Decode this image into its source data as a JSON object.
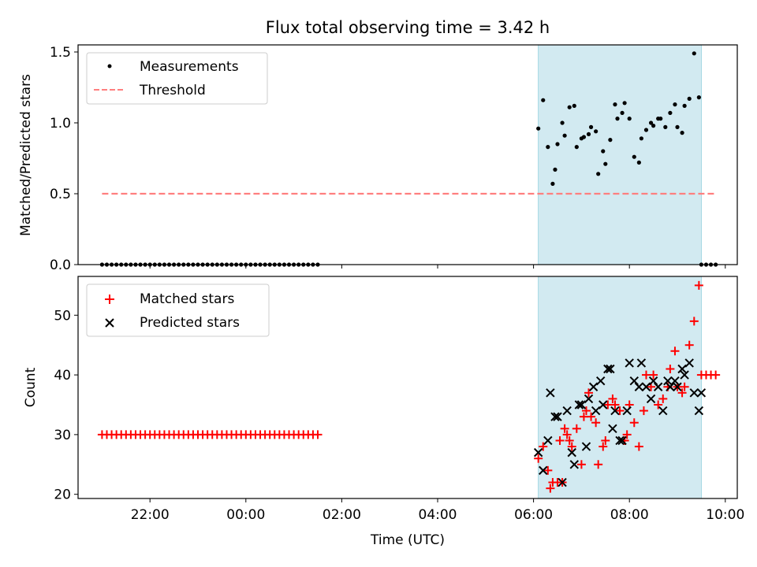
{
  "title": "Flux total observing time = 3.42 h",
  "colors": {
    "measurement": "#000000",
    "threshold": "#ff7f7f",
    "matched": "#ff0000",
    "predicted": "#000000",
    "span": "#add8e6"
  },
  "chart_data": [
    {
      "type": "scatter",
      "panel": "top",
      "xlabel": "",
      "ylabel": "Matched/Predicted stars",
      "ylim": [
        0,
        1.55
      ],
      "yticks": [
        "0.0",
        "0.5",
        "1.0",
        "1.5"
      ],
      "ytick_values": [
        0,
        0.5,
        1.0,
        1.5
      ],
      "xlim": [
        20.5,
        34.25
      ],
      "highlight_span": [
        30.1,
        33.5
      ],
      "legend_position": "upper-left",
      "legend": [
        "Measurements",
        "Threshold"
      ],
      "threshold": {
        "name": "Threshold",
        "value": 0.5,
        "x_range": [
          21.0,
          33.8
        ]
      },
      "series": [
        {
          "name": "Measurements",
          "x": [
            21.0,
            21.1,
            21.2,
            21.3,
            21.4,
            21.5,
            21.6,
            21.7,
            21.8,
            21.9,
            22.0,
            22.1,
            22.2,
            22.3,
            22.4,
            22.5,
            22.6,
            22.7,
            22.8,
            22.9,
            23.0,
            23.1,
            23.2,
            23.3,
            23.4,
            23.5,
            23.6,
            23.7,
            23.8,
            23.9,
            24.0,
            24.1,
            24.2,
            24.3,
            24.4,
            24.5,
            24.6,
            24.7,
            24.8,
            24.9,
            25.0,
            25.1,
            25.2,
            25.3,
            25.4,
            25.5,
            30.1,
            30.2,
            30.3,
            30.4,
            30.45,
            30.5,
            30.6,
            30.65,
            30.75,
            30.85,
            30.9,
            31.0,
            31.05,
            31.15,
            31.2,
            31.3,
            31.35,
            31.45,
            31.5,
            31.6,
            31.7,
            31.75,
            31.85,
            31.9,
            32.0,
            32.1,
            32.2,
            32.25,
            32.35,
            32.45,
            32.5,
            32.6,
            32.65,
            32.75,
            32.85,
            32.95,
            33.0,
            33.1,
            33.15,
            33.25,
            33.35,
            33.45,
            33.5,
            33.6,
            33.7,
            33.8
          ],
          "y": [
            0,
            0,
            0,
            0,
            0,
            0,
            0,
            0,
            0,
            0,
            0,
            0,
            0,
            0,
            0,
            0,
            0,
            0,
            0,
            0,
            0,
            0,
            0,
            0,
            0,
            0,
            0,
            0,
            0,
            0,
            0,
            0,
            0,
            0,
            0,
            0,
            0,
            0,
            0,
            0,
            0,
            0,
            0,
            0,
            0,
            0,
            0.96,
            1.16,
            0.83,
            0.57,
            0.67,
            0.85,
            1.0,
            0.91,
            1.11,
            1.12,
            0.83,
            0.89,
            0.9,
            0.92,
            0.97,
            0.94,
            0.64,
            0.8,
            0.71,
            0.88,
            1.13,
            1.03,
            1.07,
            1.14,
            1.03,
            0.76,
            0.72,
            0.89,
            0.95,
            1.0,
            0.98,
            1.03,
            1.03,
            0.97,
            1.07,
            1.13,
            0.97,
            0.93,
            1.12,
            1.17,
            1.49,
            1.18,
            0,
            0,
            0,
            0
          ]
        }
      ]
    },
    {
      "type": "scatter",
      "panel": "bottom",
      "xlabel": "Time (UTC)",
      "ylabel": "Count",
      "ylim": [
        19.3,
        56.5
      ],
      "yticks": [
        "20",
        "30",
        "40",
        "50"
      ],
      "ytick_values": [
        20,
        30,
        40,
        50
      ],
      "xlim": [
        20.5,
        34.25
      ],
      "xticks": [
        "22:00",
        "00:00",
        "02:00",
        "04:00",
        "06:00",
        "08:00",
        "10:00"
      ],
      "xtick_values": [
        22,
        24,
        26,
        28,
        30,
        32,
        34
      ],
      "highlight_span": [
        30.1,
        33.5
      ],
      "legend_position": "upper-left",
      "legend": [
        "Matched stars",
        "Predicted stars"
      ],
      "series": [
        {
          "name": "Matched stars",
          "x": [
            21.0,
            21.1,
            21.2,
            21.3,
            21.4,
            21.5,
            21.6,
            21.7,
            21.8,
            21.9,
            22.0,
            22.1,
            22.2,
            22.3,
            22.4,
            22.5,
            22.6,
            22.7,
            22.8,
            22.9,
            23.0,
            23.1,
            23.2,
            23.3,
            23.4,
            23.5,
            23.6,
            23.7,
            23.8,
            23.9,
            24.0,
            24.1,
            24.2,
            24.3,
            24.4,
            24.5,
            24.6,
            24.7,
            24.8,
            24.9,
            25.0,
            25.1,
            25.2,
            25.3,
            25.4,
            25.5,
            30.1,
            30.2,
            30.3,
            30.35,
            30.4,
            30.5,
            30.55,
            30.6,
            30.65,
            30.7,
            30.75,
            30.8,
            30.9,
            31.0,
            31.05,
            31.1,
            31.15,
            31.2,
            31.3,
            31.35,
            31.45,
            31.5,
            31.55,
            31.65,
            31.7,
            31.8,
            31.9,
            31.95,
            32.0,
            32.1,
            32.2,
            32.3,
            32.35,
            32.45,
            32.5,
            32.6,
            32.7,
            32.8,
            32.85,
            32.95,
            33.0,
            33.1,
            33.15,
            33.25,
            33.35,
            33.45,
            33.5,
            33.6,
            33.7,
            33.8
          ],
          "y": [
            30,
            30,
            30,
            30,
            30,
            30,
            30,
            30,
            30,
            30,
            30,
            30,
            30,
            30,
            30,
            30,
            30,
            30,
            30,
            30,
            30,
            30,
            30,
            30,
            30,
            30,
            30,
            30,
            30,
            30,
            30,
            30,
            30,
            30,
            30,
            30,
            30,
            30,
            30,
            30,
            30,
            30,
            30,
            30,
            30,
            30,
            26,
            28,
            24,
            21,
            22,
            22,
            29,
            22,
            31,
            30,
            29,
            28,
            31,
            25,
            33,
            34,
            37,
            33,
            32,
            25,
            28,
            29,
            35,
            36,
            35,
            34,
            29,
            30,
            35,
            32,
            28,
            34,
            40,
            38,
            40,
            35,
            36,
            38,
            41,
            44,
            38,
            37,
            38,
            45,
            49,
            55,
            40,
            40,
            40,
            40
          ]
        },
        {
          "name": "Predicted stars",
          "x": [
            30.1,
            30.2,
            30.3,
            30.35,
            30.45,
            30.5,
            30.6,
            30.7,
            30.8,
            30.85,
            30.95,
            31.0,
            31.1,
            31.15,
            31.25,
            31.3,
            31.4,
            31.45,
            31.55,
            31.6,
            31.65,
            31.7,
            31.8,
            31.85,
            31.95,
            32.0,
            32.1,
            32.2,
            32.25,
            32.35,
            32.45,
            32.5,
            32.6,
            32.7,
            32.8,
            32.85,
            32.95,
            33.0,
            33.1,
            33.15,
            33.25,
            33.35,
            33.45,
            33.5
          ],
          "y": [
            27,
            24,
            29,
            37,
            33,
            33,
            22,
            34,
            27,
            25,
            35,
            35,
            28,
            36,
            38,
            34,
            39,
            35,
            41,
            41,
            31,
            34,
            29,
            29,
            34,
            42,
            39,
            38,
            42,
            38,
            36,
            39,
            38,
            34,
            39,
            38,
            39,
            38,
            41,
            40,
            42,
            37,
            34,
            37
          ]
        }
      ]
    }
  ]
}
